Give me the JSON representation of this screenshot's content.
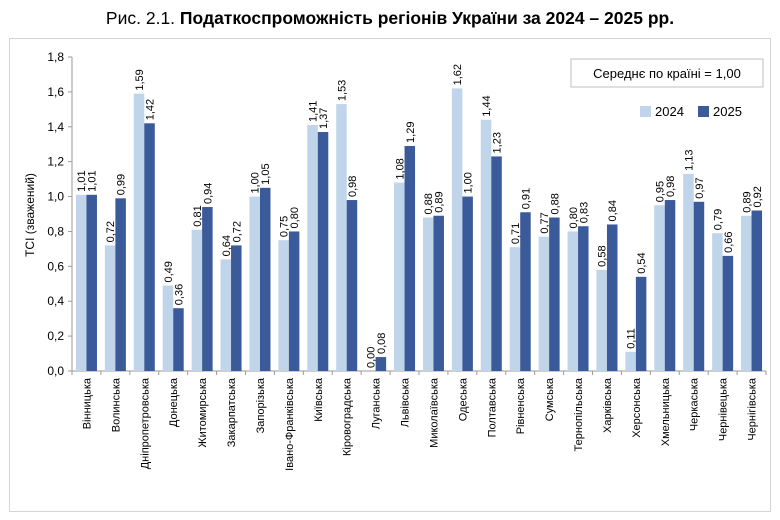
{
  "figure": {
    "prefix": "Рис. 2.1.",
    "title": "Податкоспроможність регіонів України за 2024 – 2025 рр."
  },
  "note": "Середнє по країні = 1,00",
  "colors": {
    "s2024": "#c0d5ea",
    "s2025": "#3b5a9a",
    "axis": "#9a9a9a"
  },
  "chart_data": {
    "type": "bar",
    "title": "Податкоспроможність регіонів України за 2024 – 2025 рр.",
    "ylabel": "ТСІ (зважений)",
    "ylim": [
      0,
      1.8
    ],
    "yticks": [
      "0,0",
      "0,2",
      "0,4",
      "0,6",
      "0,8",
      "1,0",
      "1,2",
      "1,4",
      "1,6",
      "1,8"
    ],
    "legend_position": "top-right",
    "grid": false,
    "categories": [
      "Вінницька",
      "Волинська",
      "Дніпропетровська",
      "Донецька",
      "Житомирська",
      "Закарпатська",
      "Запорізька",
      "Івано-Франківська",
      "Київська",
      "Кіровоградська",
      "Луганська",
      "Львівська",
      "Миколаївська",
      "Одеська",
      "Полтавська",
      "Рівненська",
      "Сумська",
      "Тернопільська",
      "Харківська",
      "Херсонська",
      "Хмельницька",
      "Черкаська",
      "Чернівецька",
      "Чернігівська"
    ],
    "series": [
      {
        "name": "2024",
        "values": [
          1.01,
          0.72,
          1.59,
          0.49,
          0.81,
          0.64,
          1.0,
          0.75,
          1.41,
          1.53,
          0.0,
          1.08,
          0.88,
          1.62,
          1.44,
          0.71,
          0.77,
          0.8,
          0.58,
          0.11,
          0.95,
          1.13,
          0.79,
          0.89
        ],
        "labels": [
          "1,01",
          "0,72",
          "1,59",
          "0,49",
          "0,81",
          "0,64",
          "1,00",
          "0,75",
          "1,41",
          "1,53",
          "0,00",
          "1,08",
          "0,88",
          "1,62",
          "1,44",
          "0,71",
          "0,77",
          "0,80",
          "0,58",
          "0,11",
          "0,95",
          "1,13",
          "0,79",
          "0,89"
        ]
      },
      {
        "name": "2025",
        "values": [
          1.01,
          0.99,
          1.42,
          0.36,
          0.94,
          0.72,
          1.05,
          0.8,
          1.37,
          0.98,
          0.08,
          1.29,
          0.89,
          1.0,
          1.23,
          0.91,
          0.88,
          0.83,
          0.84,
          0.54,
          0.98,
          0.97,
          0.66,
          0.92
        ],
        "labels": [
          "1,01",
          "0,99",
          "1,42",
          "0,36",
          "0,94",
          "0,72",
          "1,05",
          "0,80",
          "1,37",
          "0,98",
          "0,08",
          "1,29",
          "0,89",
          "1,00",
          "1,23",
          "0,91",
          "0,88",
          "0,83",
          "0,84",
          "0,54",
          "0,98",
          "0,97",
          "0,66",
          "0,92"
        ]
      }
    ]
  }
}
